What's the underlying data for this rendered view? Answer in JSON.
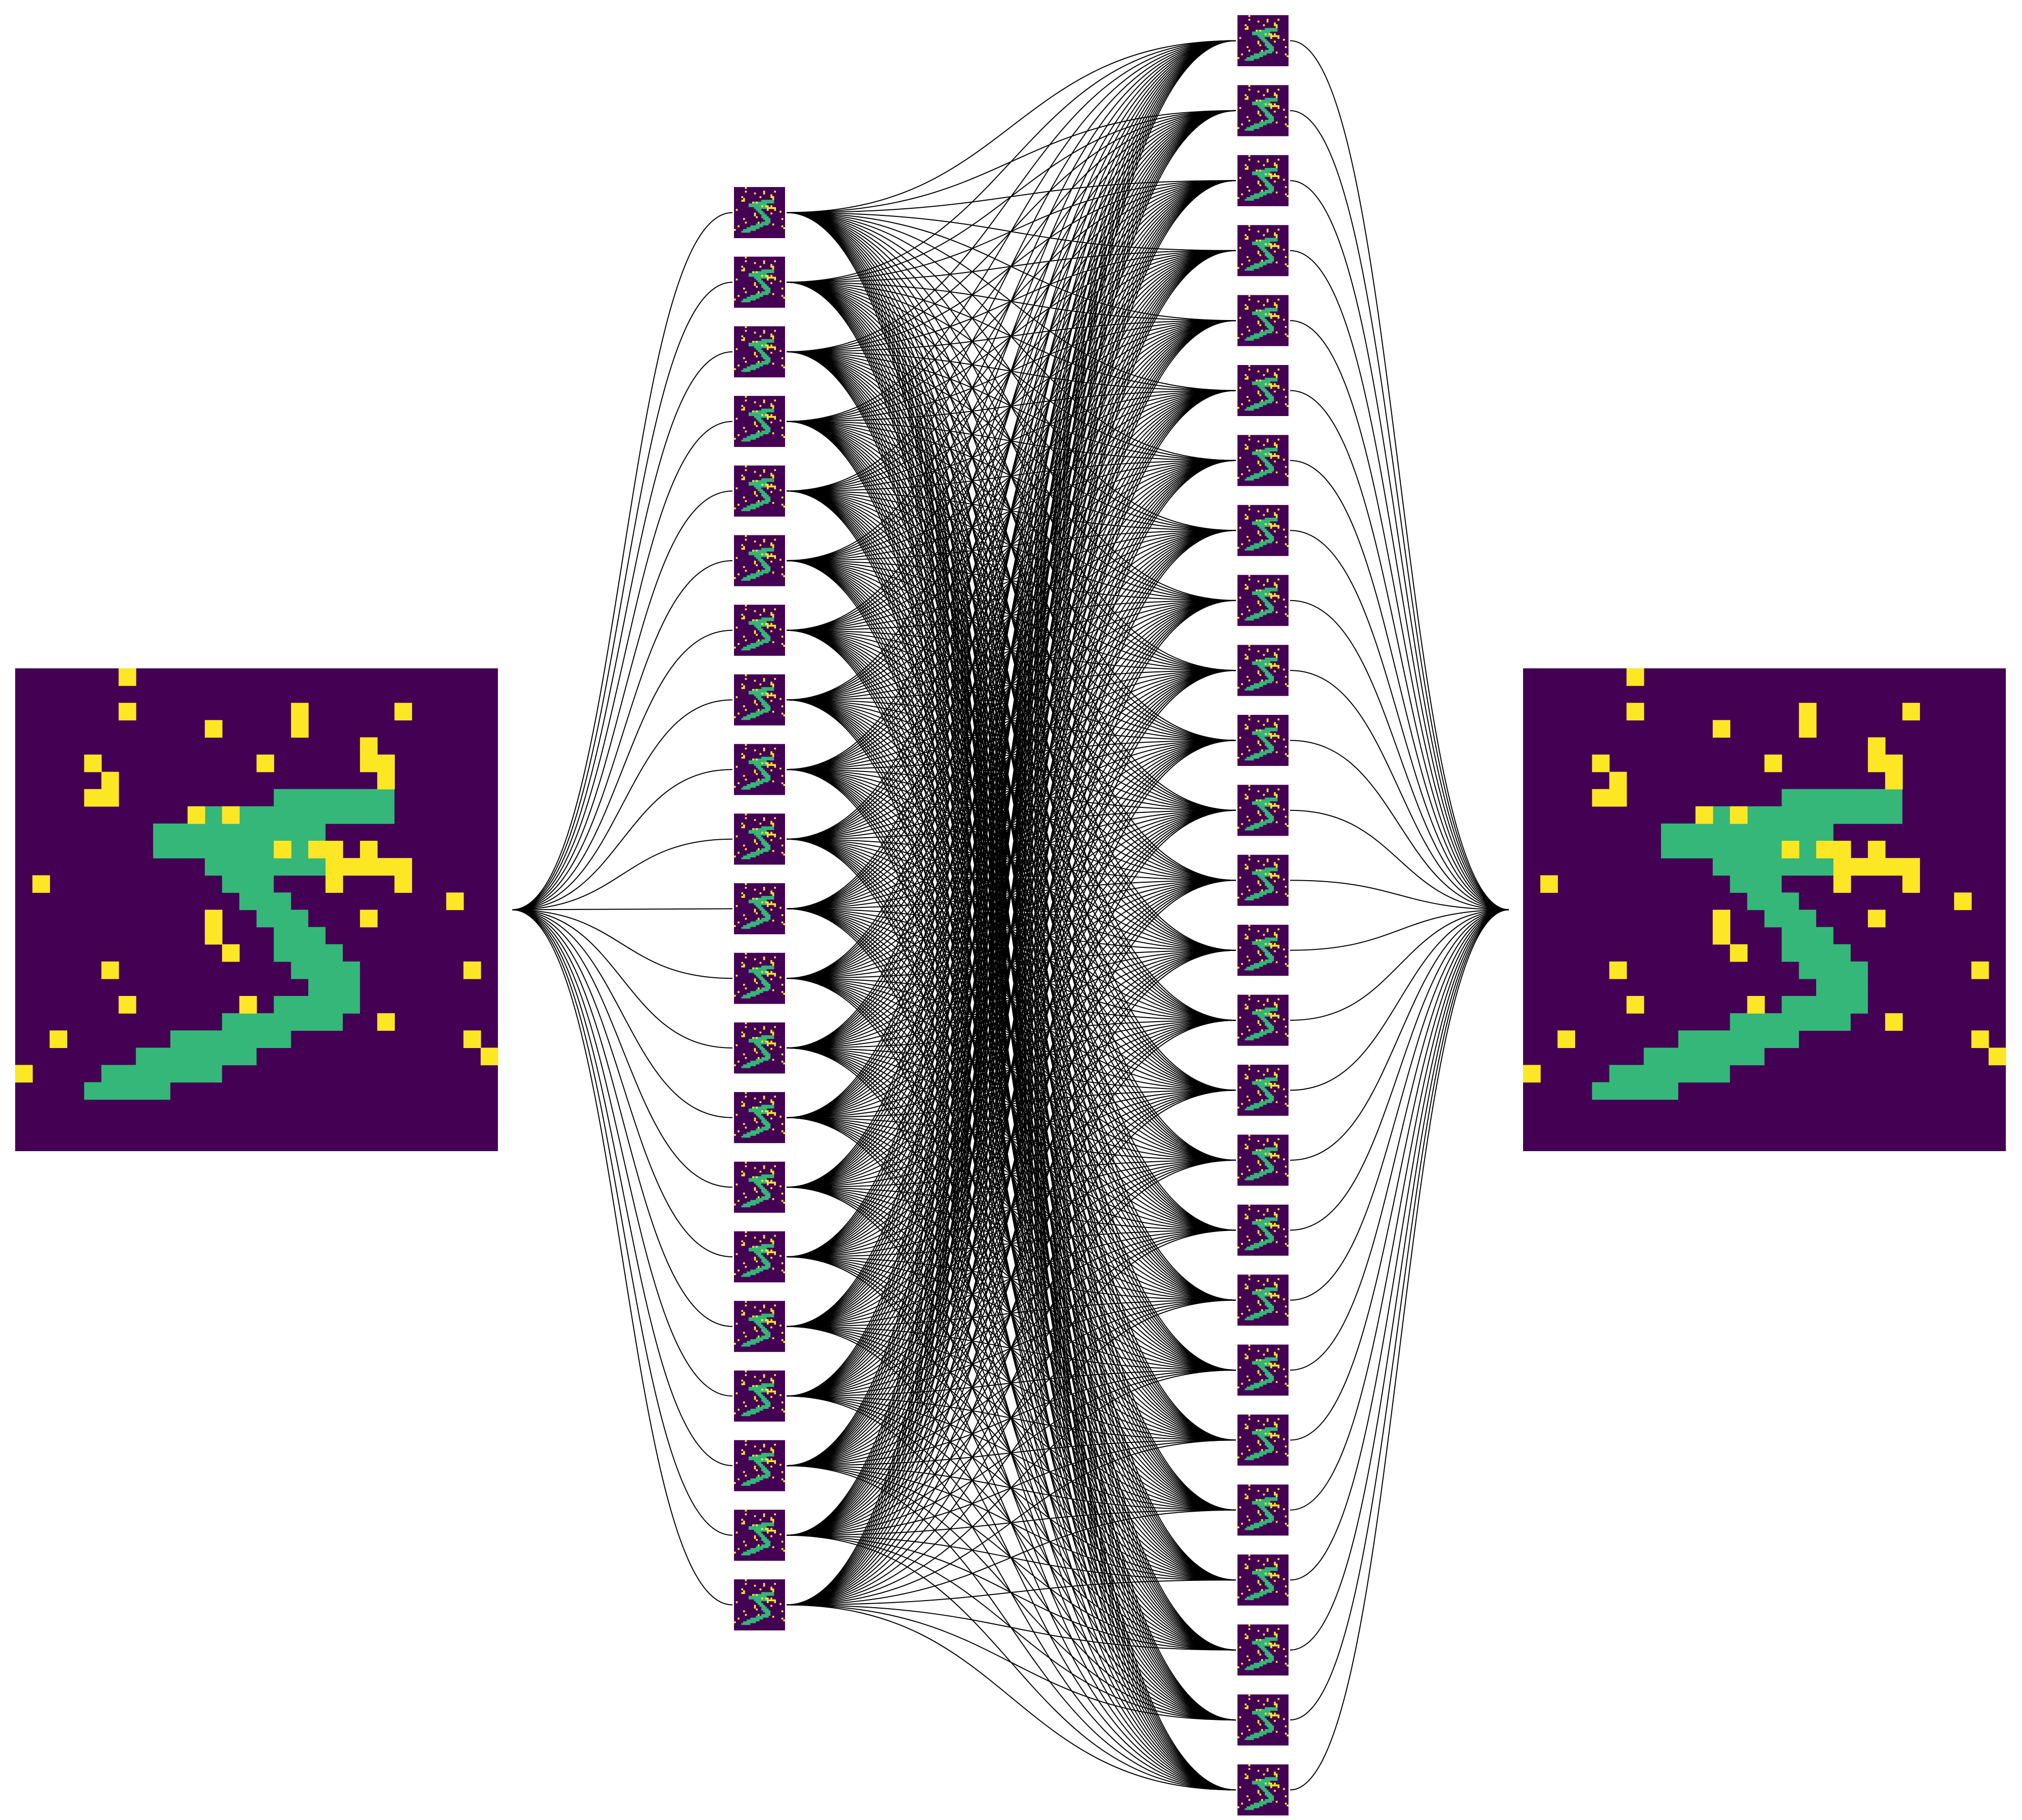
{
  "colors": {
    "background_pixel": "#440154",
    "stroke_pixel": "#35b779",
    "noise_pixel": "#fde725",
    "edge": "#000000",
    "canvas": "#ffffff"
  },
  "diagram": {
    "type": "network",
    "layers": [
      {
        "name": "input",
        "node_count": 1,
        "node_content": "noisy-digit-image"
      },
      {
        "name": "hidden-layer-1",
        "node_count": 21,
        "node_content": "noisy-digit-thumbnail"
      },
      {
        "name": "hidden-layer-2",
        "node_count": 26,
        "node_content": "noisy-digit-thumbnail"
      },
      {
        "name": "output",
        "node_count": 1,
        "node_content": "noisy-digit-image"
      }
    ],
    "connections": [
      {
        "from": "input",
        "to": "hidden-layer-1",
        "pattern": "fully-connected"
      },
      {
        "from": "hidden-layer-1",
        "to": "hidden-layer-2",
        "pattern": "fully-connected"
      },
      {
        "from": "hidden-layer-2",
        "to": "output",
        "pattern": "fully-connected"
      }
    ]
  },
  "image": {
    "grid_size": 28,
    "values_legend": {
      "0": "background",
      "1": "stroke",
      "2": "noise"
    },
    "stroke_segments": [
      {
        "row": 7,
        "c0": 15,
        "c1": 21
      },
      {
        "row": 8,
        "c0": 11,
        "c1": 21
      },
      {
        "row": 9,
        "c0": 8,
        "c1": 17
      },
      {
        "row": 10,
        "c0": 8,
        "c1": 17
      },
      {
        "row": 11,
        "c0": 11,
        "c1": 17
      },
      {
        "row": 12,
        "c0": 12,
        "c1": 14
      },
      {
        "row": 13,
        "c0": 13,
        "c1": 15
      },
      {
        "row": 14,
        "c0": 14,
        "c1": 16
      },
      {
        "row": 15,
        "c0": 15,
        "c1": 17
      },
      {
        "row": 16,
        "c0": 15,
        "c1": 18
      },
      {
        "row": 17,
        "c0": 16,
        "c1": 19
      },
      {
        "row": 18,
        "c0": 17,
        "c1": 19
      },
      {
        "row": 19,
        "c0": 15,
        "c1": 19
      },
      {
        "row": 20,
        "c0": 12,
        "c1": 18
      },
      {
        "row": 21,
        "c0": 9,
        "c1": 15
      },
      {
        "row": 22,
        "c0": 7,
        "c1": 13
      },
      {
        "row": 23,
        "c0": 5,
        "c1": 11
      },
      {
        "row": 24,
        "c0": 4,
        "c1": 8
      }
    ],
    "noise_pixels": [
      [
        0,
        6
      ],
      [
        2,
        6
      ],
      [
        2,
        16
      ],
      [
        2,
        22
      ],
      [
        3,
        11
      ],
      [
        3,
        16
      ],
      [
        4,
        20
      ],
      [
        5,
        4
      ],
      [
        5,
        14
      ],
      [
        5,
        20
      ],
      [
        5,
        21
      ],
      [
        6,
        5
      ],
      [
        6,
        21
      ],
      [
        7,
        4
      ],
      [
        7,
        5
      ],
      [
        8,
        10
      ],
      [
        8,
        12
      ],
      [
        10,
        15
      ],
      [
        10,
        17
      ],
      [
        10,
        18
      ],
      [
        10,
        20
      ],
      [
        11,
        18
      ],
      [
        11,
        19
      ],
      [
        11,
        20
      ],
      [
        11,
        21
      ],
      [
        11,
        22
      ],
      [
        12,
        1
      ],
      [
        12,
        18
      ],
      [
        12,
        22
      ],
      [
        13,
        25
      ],
      [
        14,
        11
      ],
      [
        14,
        20
      ],
      [
        15,
        11
      ],
      [
        16,
        12
      ],
      [
        17,
        5
      ],
      [
        17,
        26
      ],
      [
        19,
        6
      ],
      [
        19,
        13
      ],
      [
        20,
        21
      ],
      [
        21,
        2
      ],
      [
        21,
        26
      ],
      [
        22,
        27
      ],
      [
        23,
        0
      ]
    ]
  }
}
